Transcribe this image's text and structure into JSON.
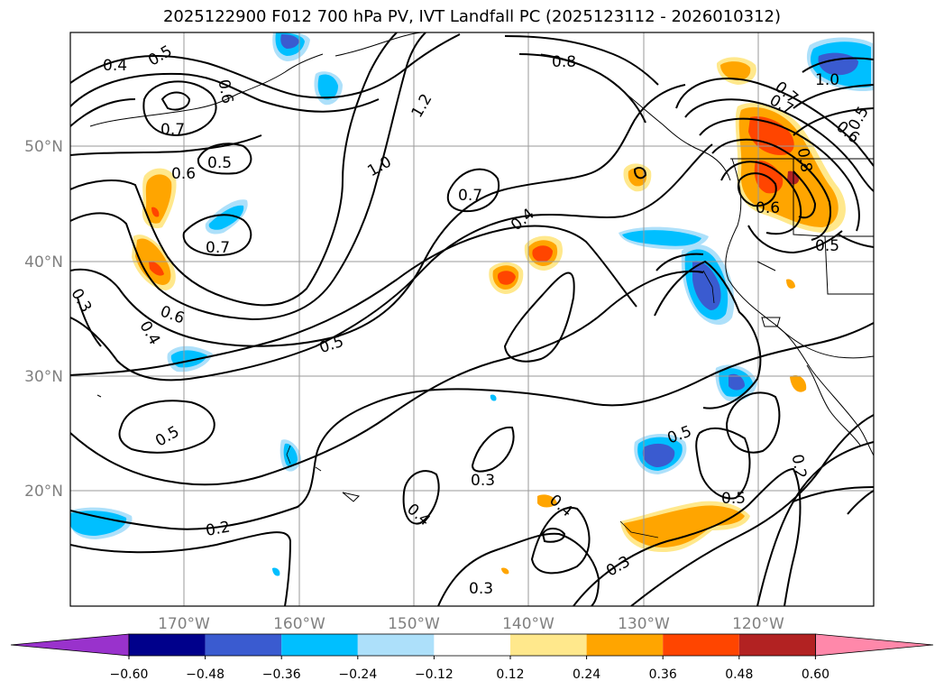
{
  "title": "2025122900 F012 700 hPa PV, IVT Landfall PC (2025123112 - 2026010312)",
  "map": {
    "lon_labels": [
      "170°W",
      "160°W",
      "150°W",
      "140°W",
      "130°W",
      "120°W"
    ],
    "lat_labels": [
      "50°N",
      "40°N",
      "30°N",
      "20°N"
    ],
    "contour_labels": [
      {
        "text": "0.4"
      },
      {
        "text": "0.5"
      },
      {
        "text": "0.7"
      },
      {
        "text": "0.6"
      },
      {
        "text": "0.5"
      },
      {
        "text": "0.6"
      },
      {
        "text": "0.7"
      },
      {
        "text": "1.2"
      },
      {
        "text": "1.0"
      },
      {
        "text": "0.7"
      },
      {
        "text": "0.4"
      },
      {
        "text": "0.5"
      },
      {
        "text": "0.4"
      },
      {
        "text": "0.5"
      },
      {
        "text": "0.3"
      },
      {
        "text": "0.2"
      },
      {
        "text": "0.4"
      },
      {
        "text": "0.3"
      },
      {
        "text": "0.3"
      },
      {
        "text": "0.5"
      },
      {
        "text": "0.5"
      },
      {
        "text": "0.2"
      },
      {
        "text": "0.3"
      },
      {
        "text": "0.4"
      },
      {
        "text": "0.8"
      },
      {
        "text": "1.0"
      },
      {
        "text": "0.7"
      },
      {
        "text": "0.6"
      },
      {
        "text": "0.5"
      },
      {
        "text": "0.5"
      },
      {
        "text": "0.6"
      },
      {
        "text": "0.7"
      },
      {
        "text": "0.6"
      },
      {
        "text": "0.8"
      }
    ]
  },
  "colorbar": {
    "colors": [
      "#9932CC",
      "#00008B",
      "#3A5BD0",
      "#00BFFF",
      "#ADE0FA",
      "#FFFFFF",
      "#FFE88C",
      "#FFA500",
      "#FF4500",
      "#B22222",
      "#FF88AA"
    ],
    "tick_labels": [
      "−0.60",
      "−0.48",
      "−0.36",
      "−0.24",
      "−0.12",
      "0.12",
      "0.24",
      "0.36",
      "0.48",
      "0.60"
    ]
  }
}
